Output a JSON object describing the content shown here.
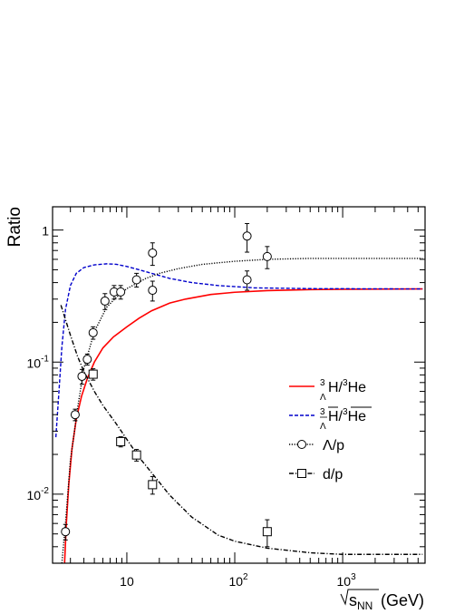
{
  "chart_data": {
    "type": "line",
    "ylabel": "Ratio",
    "xlabel": {
      "symbol": "s",
      "subscript": "NN",
      "unit": "(GeV)"
    },
    "xscale": "log",
    "yscale": "log",
    "xlim": [
      2.05,
      5800
    ],
    "ylim": [
      0.003,
      1.5
    ],
    "grid": false,
    "legend_placement": "right-middle",
    "x_ticks": [
      {
        "value": 10,
        "base": "10",
        "exp": ""
      },
      {
        "value": 100,
        "base": "10",
        "exp": "2"
      },
      {
        "value": 1000,
        "base": "10",
        "exp": "3"
      }
    ],
    "y_ticks": [
      {
        "value": 0.01,
        "base": "10",
        "exp": "-2"
      },
      {
        "value": 0.1,
        "base": "10",
        "exp": "-1"
      },
      {
        "value": 1,
        "base": "1",
        "exp": ""
      }
    ],
    "legend": [
      {
        "series": "hypertriton",
        "label": {
          "pre": "3",
          "sub": "Λ",
          "main": "H/",
          "pre2": "3",
          "main2": "He",
          "bar": false
        },
        "color": "#ff0000",
        "dash": "solid",
        "marker": "none"
      },
      {
        "series": "anti_hypertriton",
        "label": {
          "pre": "3",
          "sub": "Λ",
          "main": "H/",
          "pre2": "3",
          "main2": "He",
          "bar": true
        },
        "color": "#0000cc",
        "dash": "dashed",
        "marker": "none"
      },
      {
        "series": "lambda_p",
        "label": {
          "text": "Λ/p"
        },
        "color": "#000000",
        "dash": "dotted",
        "marker": "circle"
      },
      {
        "series": "d_p",
        "label": {
          "text": "d/p"
        },
        "color": "#000000",
        "dash": "dashdot",
        "marker": "square"
      }
    ],
    "series": [
      {
        "id": "hypertriton",
        "color": "#ff0000",
        "dash": "solid",
        "x": [
          2.65,
          2.75,
          2.9,
          3.1,
          3.4,
          3.8,
          4.3,
          5,
          6,
          7.5,
          10,
          13,
          17,
          25,
          35,
          60,
          100,
          200,
          500,
          1000,
          5500
        ],
        "y": [
          0.003,
          0.006,
          0.012,
          0.022,
          0.037,
          0.055,
          0.075,
          0.1,
          0.128,
          0.155,
          0.185,
          0.215,
          0.245,
          0.28,
          0.3,
          0.325,
          0.338,
          0.348,
          0.354,
          0.356,
          0.358
        ]
      },
      {
        "id": "anti_hypertriton",
        "color": "#0000cc",
        "dash": "dashed",
        "x": [
          2.2,
          2.35,
          2.5,
          2.7,
          3.0,
          3.4,
          4.0,
          5.0,
          6.5,
          8,
          10,
          13,
          17,
          25,
          40,
          70,
          150,
          500,
          5500
        ],
        "y": [
          0.027,
          0.06,
          0.13,
          0.25,
          0.38,
          0.47,
          0.52,
          0.545,
          0.555,
          0.55,
          0.53,
          0.5,
          0.47,
          0.43,
          0.4,
          0.38,
          0.365,
          0.36,
          0.358
        ]
      },
      {
        "id": "lambda_p",
        "color": "#000000",
        "dash": "dotted",
        "x": [
          2.5,
          2.7,
          3.0,
          3.5,
          4.0,
          5.0,
          6.5,
          8,
          10,
          15,
          20,
          30,
          50,
          100,
          200,
          500,
          1000,
          5500
        ],
        "y": [
          0.003,
          0.006,
          0.018,
          0.045,
          0.09,
          0.17,
          0.26,
          0.31,
          0.36,
          0.43,
          0.47,
          0.51,
          0.55,
          0.58,
          0.6,
          0.61,
          0.61,
          0.61
        ]
      },
      {
        "id": "d_p",
        "color": "#000000",
        "dash": "dashdot",
        "x": [
          2.45,
          2.7,
          3.0,
          3.5,
          4.0,
          5.0,
          6.0,
          8,
          10,
          13,
          17,
          25,
          40,
          70,
          100,
          200,
          500,
          1000,
          2000,
          5500
        ],
        "y": [
          0.27,
          0.21,
          0.16,
          0.11,
          0.085,
          0.06,
          0.047,
          0.034,
          0.026,
          0.019,
          0.0145,
          0.0098,
          0.0067,
          0.0049,
          0.0044,
          0.0039,
          0.0036,
          0.0035,
          0.0035,
          0.0035
        ]
      }
    ],
    "points": [
      {
        "id": "lambda_p_points",
        "marker": "circle",
        "x": [
          2.7,
          3.32,
          3.84,
          4.3,
          4.87,
          6.27,
          7.62,
          8.77,
          12.3,
          17.3,
          17.3,
          130,
          130,
          200
        ],
        "y": [
          0.0052,
          0.04,
          0.078,
          0.105,
          0.167,
          0.29,
          0.34,
          0.34,
          0.42,
          0.35,
          0.67,
          0.42,
          0.9,
          0.63
        ],
        "err": [
          0.0007,
          0.004,
          0.01,
          0.01,
          0.018,
          0.04,
          0.04,
          0.04,
          0.05,
          0.06,
          0.13,
          0.07,
          0.22,
          0.12
        ]
      },
      {
        "id": "d_p_points",
        "marker": "square",
        "x": [
          4.87,
          8.77,
          12.3,
          17.3,
          200
        ],
        "y": [
          0.081,
          0.025,
          0.0198,
          0.0118,
          0.0052
        ],
        "err": [
          0.008,
          0.0022,
          0.002,
          0.0018,
          0.0012
        ]
      }
    ]
  }
}
